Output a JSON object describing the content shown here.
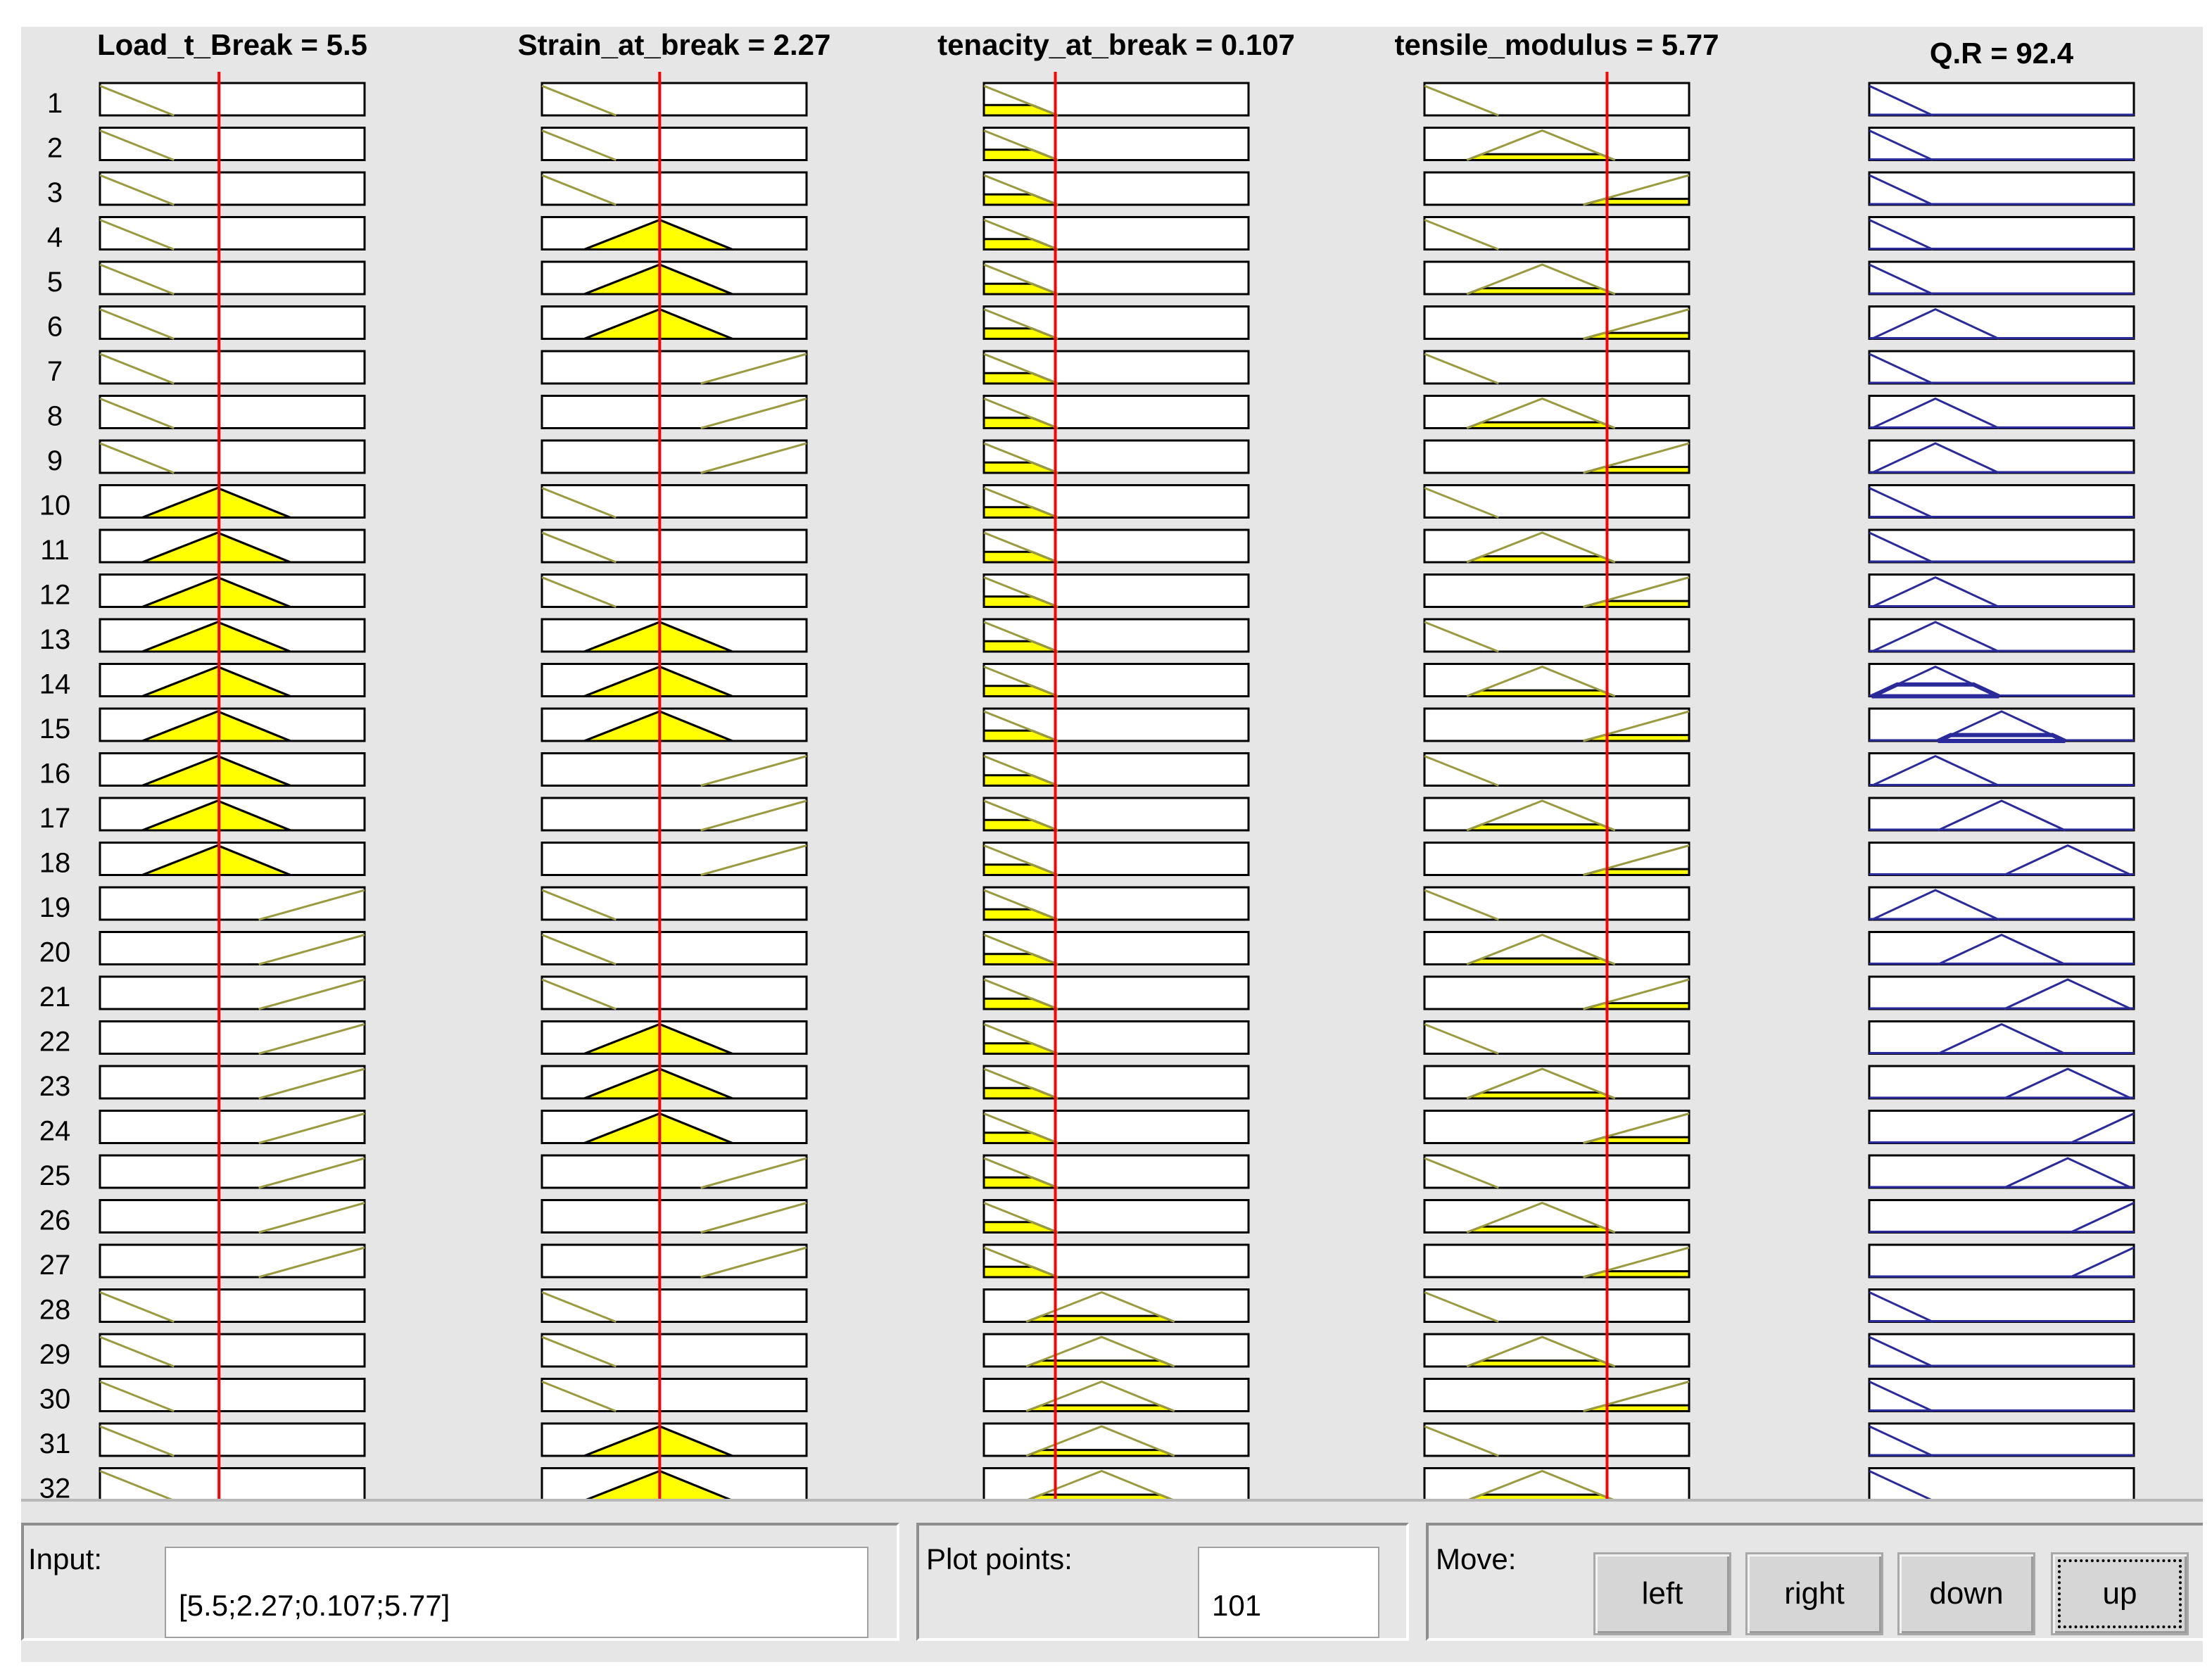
{
  "inputs": [
    {
      "title": "Load_t_Break = 5.5",
      "mf_set": [
        1,
        1,
        1,
        1,
        1,
        1,
        1,
        1,
        1,
        2,
        2,
        2,
        2,
        2,
        2,
        2,
        2,
        2,
        3,
        3,
        3,
        3,
        3,
        3,
        3,
        3,
        3,
        1,
        1,
        1,
        1,
        1
      ],
      "value_fraction": 0.45
    },
    {
      "title": "Strain_at_break = 2.27",
      "mf_set": [
        1,
        1,
        1,
        2,
        2,
        2,
        3,
        3,
        3,
        1,
        1,
        1,
        2,
        2,
        2,
        3,
        3,
        3,
        1,
        1,
        1,
        2,
        2,
        2,
        3,
        3,
        3,
        1,
        1,
        1,
        2,
        2
      ],
      "value_fraction": 0.445
    },
    {
      "title": "tenacity_at_break = 0.107",
      "mf_set": [
        1,
        1,
        1,
        1,
        1,
        1,
        1,
        1,
        1,
        1,
        1,
        1,
        1,
        1,
        1,
        1,
        1,
        1,
        1,
        1,
        1,
        1,
        1,
        1,
        1,
        1,
        1,
        2,
        2,
        2,
        2,
        2
      ],
      "value_fraction": 0.27
    },
    {
      "title": "tensile_modulus = 5.77",
      "mf_set": [
        1,
        2,
        3,
        1,
        2,
        3,
        1,
        2,
        3,
        1,
        2,
        3,
        1,
        2,
        3,
        1,
        2,
        3,
        1,
        2,
        3,
        1,
        2,
        3,
        1,
        2,
        3,
        1,
        2,
        3,
        1,
        2
      ],
      "value_fraction": 0.69
    }
  ],
  "output": {
    "title": "Q.R = 92.4",
    "mf_set": [
      1,
      1,
      1,
      1,
      1,
      2,
      1,
      2,
      2,
      1,
      1,
      2,
      2,
      2,
      3,
      2,
      3,
      4,
      2,
      3,
      4,
      3,
      4,
      5,
      4,
      5,
      5,
      1,
      1,
      1,
      1,
      1
    ],
    "degree": [
      0,
      0,
      0,
      0,
      0,
      0,
      0,
      0,
      0,
      0,
      0,
      0,
      0,
      0.4,
      0.2,
      0,
      0,
      0,
      0,
      0,
      0,
      0,
      0,
      0,
      0,
      0,
      0,
      0,
      0,
      0,
      0,
      0
    ]
  },
  "input_degrees": [
    [
      0,
      0,
      0,
      0,
      0,
      0,
      0,
      0,
      0,
      1,
      1,
      1,
      1,
      1,
      1,
      1,
      1,
      1,
      0,
      0,
      0,
      0,
      0,
      0,
      0,
      0,
      0,
      0,
      0,
      0,
      0,
      0
    ],
    [
      0,
      0,
      0,
      1,
      1,
      1,
      0,
      0,
      0,
      0,
      0,
      0,
      1,
      1,
      1,
      0,
      0,
      0,
      0,
      0,
      0,
      1,
      1,
      1,
      0,
      0,
      0,
      0,
      0,
      0,
      1,
      1
    ],
    [
      0.35,
      0.35,
      0.35,
      0.35,
      0.35,
      0.35,
      0.35,
      0.35,
      0.35,
      0.35,
      0.35,
      0.35,
      0.35,
      0.35,
      0.35,
      0.35,
      0.35,
      0.35,
      0.35,
      0.35,
      0.35,
      0.35,
      0.35,
      0.35,
      0.35,
      0.35,
      0.35,
      0.2,
      0.2,
      0.2,
      0.2,
      0.2
    ],
    [
      0,
      0.2,
      0.2,
      0,
      0.2,
      0.2,
      0,
      0.2,
      0.2,
      0,
      0.2,
      0.2,
      0,
      0.2,
      0.2,
      0,
      0.2,
      0.2,
      0,
      0.2,
      0.2,
      0,
      0.2,
      0.2,
      0,
      0.2,
      0.2,
      0,
      0.2,
      0.2,
      0,
      0.2
    ]
  ],
  "rule_numbers": [
    "1",
    "2",
    "3",
    "4",
    "5",
    "6",
    "7",
    "8",
    "9",
    "10",
    "11",
    "12",
    "13",
    "14",
    "15",
    "16",
    "17",
    "18",
    "19",
    "20",
    "21",
    "22",
    "23",
    "24",
    "25",
    "26",
    "27",
    "28",
    "29",
    "30",
    "31",
    "32"
  ],
  "panel": {
    "input_label": "Input:",
    "input_value": "[5.5;2.27;0.107;5.77]",
    "plot_points_label": "Plot points:",
    "plot_points_value": "101",
    "move_label": "Move:",
    "buttons": {
      "left": "left",
      "right": "right",
      "down": "down",
      "up": "up"
    }
  },
  "colors": {
    "input_mf_line": "#9a9a40",
    "input_fill": "#ffff00",
    "output_mf_line": "#2a2a9a",
    "value_line": "#ff0000",
    "background": "#e6e6e6"
  }
}
